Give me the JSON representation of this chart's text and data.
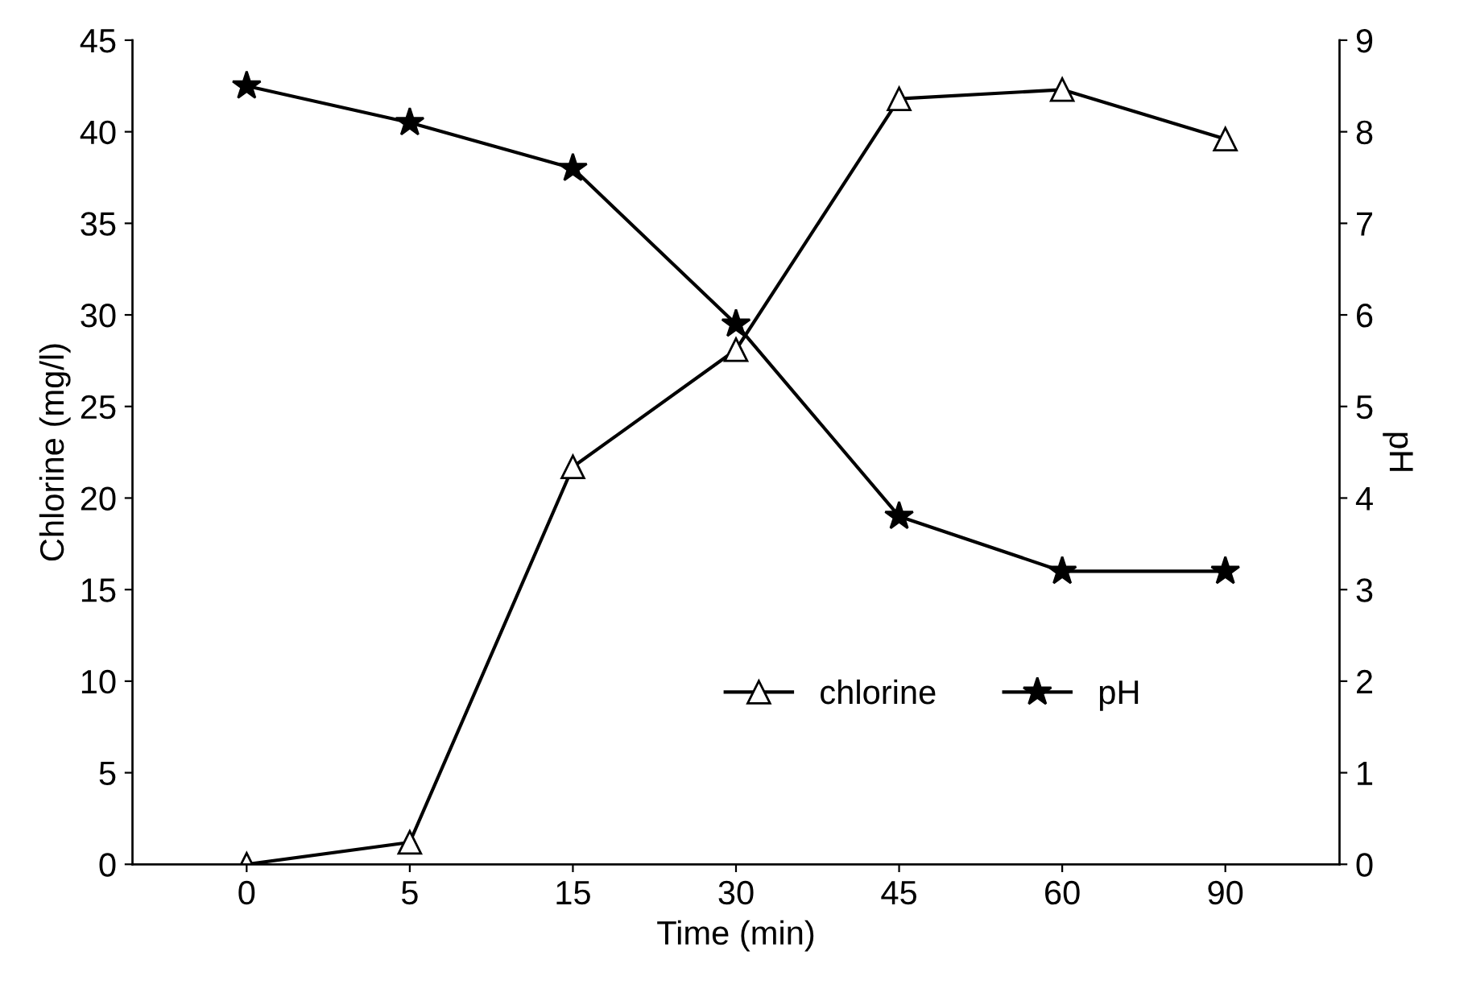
{
  "chart_data": {
    "type": "line",
    "xlabel": "Time (min)",
    "ylabel": "Chlorine (mg/l)",
    "y2label": "pH",
    "categories": [
      "0",
      "5",
      "15",
      "30",
      "45",
      "60",
      "90"
    ],
    "series": [
      {
        "name": "chlorine",
        "color": "#000000",
        "marker": "triangle",
        "values": [
          0,
          1.2,
          21.7,
          28.1,
          41.8,
          42.3,
          39.6
        ]
      },
      {
        "name": "pH",
        "color": "#000000",
        "marker": "star",
        "axis": "y2",
        "values": [
          8.5,
          8.1,
          7.6,
          5.9,
          3.8,
          3.2,
          3.2
        ]
      }
    ],
    "ylim": [
      0,
      45
    ],
    "yticks": [
      0,
      5,
      10,
      15,
      20,
      25,
      30,
      35,
      40,
      45
    ],
    "y2lim": [
      0,
      9
    ],
    "y2ticks": [
      0,
      1,
      2,
      3,
      4,
      5,
      6,
      7,
      8,
      9
    ],
    "grid": false,
    "legend": "bottom right",
    "line_style": "solid"
  }
}
